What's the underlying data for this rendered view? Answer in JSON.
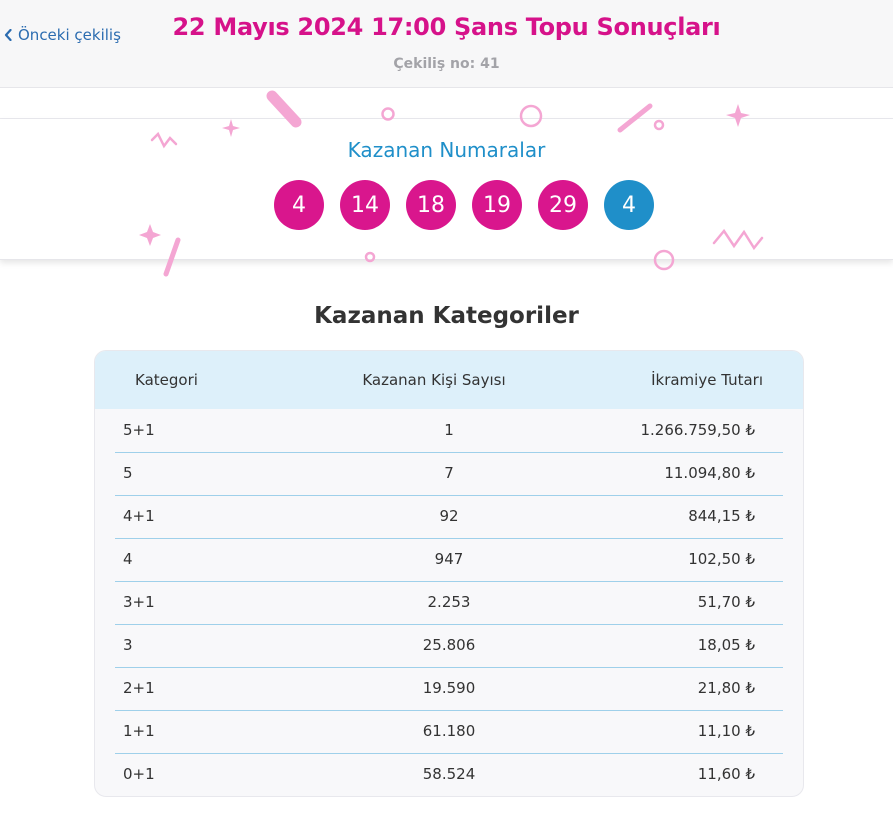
{
  "header": {
    "back_label": "Önceki çekiliş",
    "title": "22 Mayıs 2024 17:00 Şans Topu Sonuçları",
    "draw_number": "Çekiliş no: 41"
  },
  "winning": {
    "title": "Kazanan Numaralar",
    "numbers": [
      "4",
      "14",
      "18",
      "19",
      "29"
    ],
    "bonus": "4",
    "colors": {
      "main_ball": "#d9168d",
      "bonus_ball": "#1f8fc9"
    }
  },
  "categories": {
    "title": "Kazanan Kategoriler",
    "columns": [
      "Kategori",
      "Kazanan Kişi Sayısı",
      "İkramiye Tutarı"
    ],
    "rows": [
      {
        "category": "5+1",
        "winners": "1",
        "prize": "1.266.759,50 ₺"
      },
      {
        "category": "5",
        "winners": "7",
        "prize": "11.094,80 ₺"
      },
      {
        "category": "4+1",
        "winners": "92",
        "prize": "844,15 ₺"
      },
      {
        "category": "4",
        "winners": "947",
        "prize": "102,50 ₺"
      },
      {
        "category": "3+1",
        "winners": "2.253",
        "prize": "51,70 ₺"
      },
      {
        "category": "3",
        "winners": "25.806",
        "prize": "18,05 ₺"
      },
      {
        "category": "2+1",
        "winners": "19.590",
        "prize": "21,80 ₺"
      },
      {
        "category": "1+1",
        "winners": "61.180",
        "prize": "11,10 ₺"
      },
      {
        "category": "0+1",
        "winners": "58.524",
        "prize": "11,60 ₺"
      }
    ]
  }
}
